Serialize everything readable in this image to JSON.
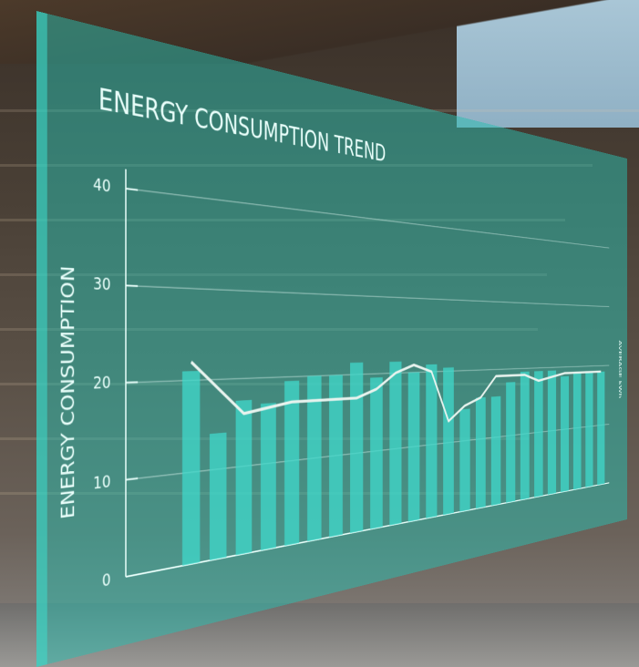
{
  "chart_data": {
    "type": "bar",
    "title": "ENERGY CONSUMPTION TREND",
    "y_label": "ENERGY CONSUMPTION",
    "y2_label": "AVERAGE kWh",
    "ylim": [
      0,
      42
    ],
    "yticks": [
      0,
      10,
      20,
      30,
      40
    ],
    "grid": true,
    "series": [
      {
        "type": "bar",
        "color": "#3fd8cb",
        "values": [
          21,
          14,
          17.5,
          17,
          19.5,
          20,
          20,
          21.5,
          19.5,
          21.5,
          20,
          21,
          20.5,
          14.5,
          16,
          16,
          18,
          19.5,
          19.5,
          19.5,
          18.5,
          19,
          19,
          19
        ]
      },
      {
        "type": "line",
        "color": "#e8f3ee",
        "values": [
          22,
          19,
          16,
          16.5,
          17,
          17,
          17,
          17,
          18,
          20,
          21,
          20,
          13,
          15,
          16,
          19,
          19,
          19,
          18,
          18.5,
          19,
          19,
          19,
          19
        ]
      }
    ]
  }
}
